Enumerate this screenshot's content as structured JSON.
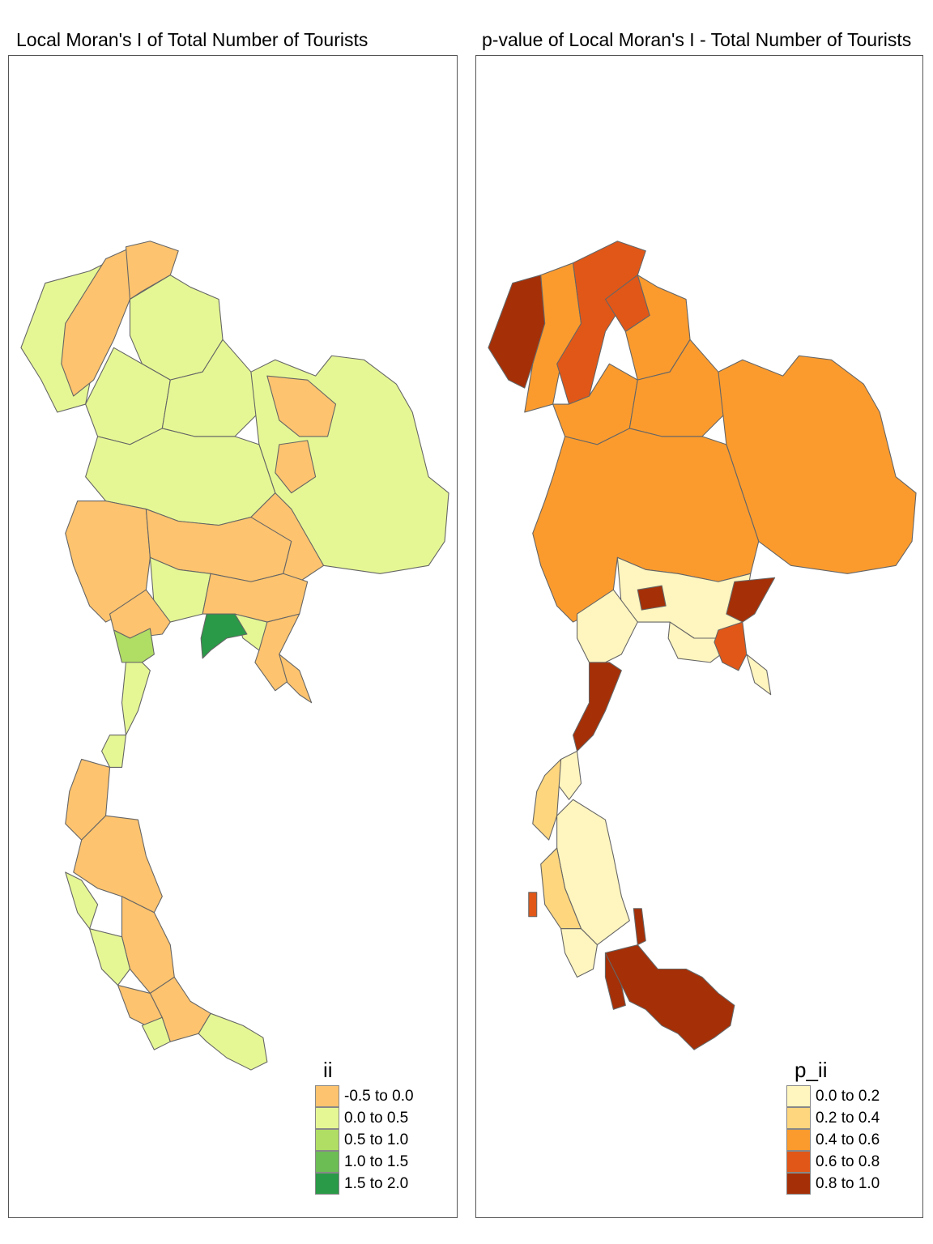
{
  "panels": [
    {
      "title": "Local Moran's I of Total Number of Tourists",
      "legend": {
        "title": "ii",
        "items": [
          {
            "label": "-0.5 to 0.0",
            "color": "#FDC36E"
          },
          {
            "label": "0.0 to 0.5",
            "color": "#E5F794"
          },
          {
            "label": "0.5 to 1.0",
            "color": "#B0DD64"
          },
          {
            "label": "1.0 to 1.5",
            "color": "#6DBD55"
          },
          {
            "label": "1.5 to 2.0",
            "color": "#2A9A48"
          }
        ]
      }
    },
    {
      "title": "p-value of Local Moran's I - Total Number of Tourists",
      "legend": {
        "title": "p_ii",
        "items": [
          {
            "label": "0.0 to 0.2",
            "color": "#FFF5BE"
          },
          {
            "label": "0.2 to 0.4",
            "color": "#FDD67E"
          },
          {
            "label": "0.4 to 0.6",
            "color": "#FB9B2E"
          },
          {
            "label": "0.6 to 0.8",
            "color": "#E15718"
          },
          {
            "label": "0.8 to 1.0",
            "color": "#A52F07"
          }
        ]
      }
    }
  ]
}
